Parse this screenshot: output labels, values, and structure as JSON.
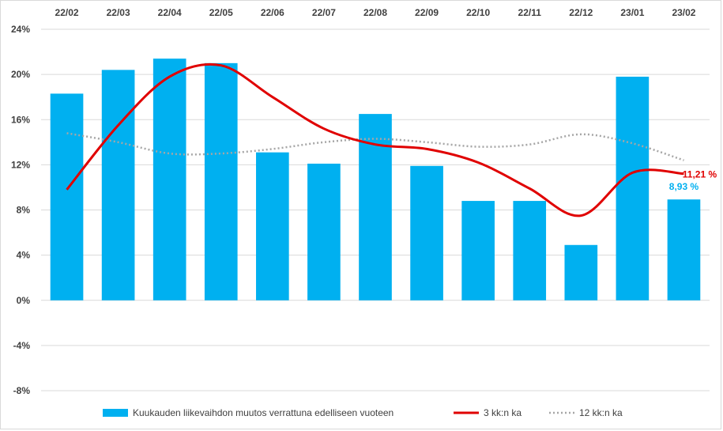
{
  "chart_data": {
    "type": "bar",
    "categories": [
      "22/02",
      "22/03",
      "22/04",
      "22/05",
      "22/06",
      "22/07",
      "22/08",
      "22/09",
      "22/10",
      "22/11",
      "22/12",
      "23/01",
      "23/02"
    ],
    "series": [
      {
        "name": "Kuukauden liikevaihdon muutos verrattuna edelliseen vuoteen",
        "type": "bar",
        "color": "#00b0f0",
        "values": [
          18.3,
          20.4,
          21.4,
          21.0,
          13.1,
          12.1,
          16.5,
          11.9,
          8.8,
          8.8,
          4.9,
          19.8,
          8.93
        ]
      },
      {
        "name": "3 kk:n ka",
        "type": "line",
        "style": "solid",
        "color": "#e00000",
        "values": [
          9.8,
          15.5,
          19.8,
          20.8,
          18.0,
          15.2,
          13.8,
          13.4,
          12.2,
          9.9,
          7.5,
          11.3,
          11.21
        ]
      },
      {
        "name": "12 kk:n ka",
        "type": "line",
        "style": "dotted",
        "color": "#a6a6a6",
        "values": [
          14.8,
          14.0,
          13.0,
          13.0,
          13.4,
          14.0,
          14.3,
          14.0,
          13.6,
          13.8,
          14.7,
          13.9,
          12.4
        ]
      }
    ],
    "yticks": [
      "24%",
      "20%",
      "16%",
      "12%",
      "8%",
      "4%",
      "0%",
      "-4%",
      "-8%"
    ],
    "ylim": [
      -8,
      24
    ],
    "grid": true,
    "xaxis_position": "top",
    "legend_position": "bottom",
    "annotations": [
      {
        "text": "11,21 %",
        "series": "3 kk:n ka",
        "index": 12,
        "color": "#e00000"
      },
      {
        "text": "8,93 %",
        "series": "Kuukauden liikevaihdon muutos verrattuna edelliseen vuoteen",
        "index": 12,
        "color": "#00b0f0"
      }
    ]
  }
}
